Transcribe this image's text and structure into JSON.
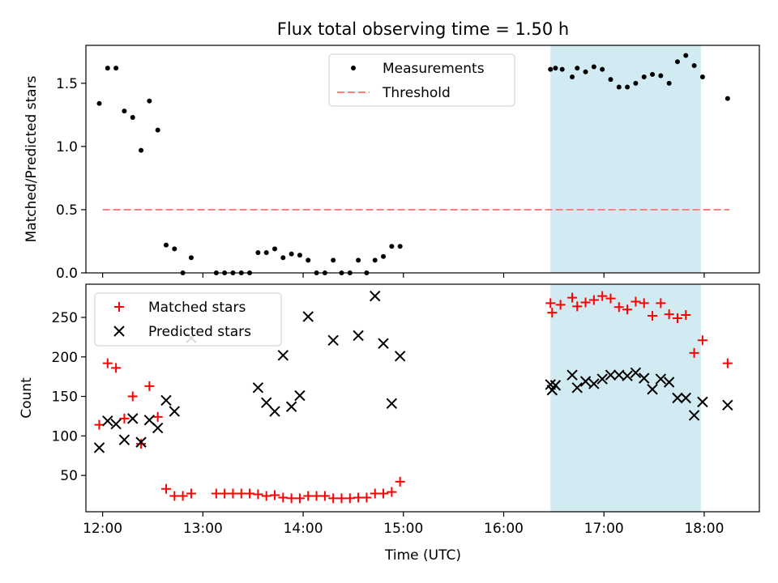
{
  "figure": {
    "title": "Flux total observing time = 1.50 h",
    "xlabel": "Time (UTC)",
    "x_ticks": [
      "12:00",
      "13:00",
      "14:00",
      "15:00",
      "16:00",
      "17:00",
      "18:00"
    ]
  },
  "chart_data": [
    {
      "type": "scatter",
      "ylabel": "Matched/Predicted stars",
      "ylim": [
        0,
        1.8
      ],
      "xlim": [
        "11:50",
        "18:33"
      ],
      "y_ticks": [
        "0.0",
        "0.5",
        "1.0",
        "1.5"
      ],
      "legend": {
        "placement": "top-center",
        "entries": [
          "Measurements",
          "Threshold"
        ]
      },
      "highlight_span": {
        "start": "16:28",
        "end": "17:58",
        "color": "#add8e6"
      },
      "threshold": {
        "name": "Threshold",
        "y": 0.5,
        "x_start": "12:00",
        "x_end": "18:15",
        "color": "#ff7f7f",
        "style": "dashed"
      },
      "series": [
        {
          "name": "Measurements",
          "color": "#000000",
          "marker": "dot",
          "points": [
            [
              "11:58",
              1.34
            ],
            [
              "12:03",
              1.62
            ],
            [
              "12:08",
              1.62
            ],
            [
              "12:13",
              1.28
            ],
            [
              "12:18",
              1.23
            ],
            [
              "12:23",
              0.97
            ],
            [
              "12:28",
              1.36
            ],
            [
              "12:33",
              1.13
            ],
            [
              "12:38",
              0.22
            ],
            [
              "12:43",
              0.19
            ],
            [
              "12:48",
              0.0
            ],
            [
              "12:53",
              0.12
            ],
            [
              "13:08",
              0.0
            ],
            [
              "13:13",
              0.0
            ],
            [
              "13:18",
              0.0
            ],
            [
              "13:23",
              0.0
            ],
            [
              "13:28",
              0.0
            ],
            [
              "13:33",
              0.16
            ],
            [
              "13:38",
              0.16
            ],
            [
              "13:43",
              0.19
            ],
            [
              "13:48",
              0.12
            ],
            [
              "13:53",
              0.15
            ],
            [
              "13:58",
              0.14
            ],
            [
              "14:03",
              0.1
            ],
            [
              "14:08",
              0.0
            ],
            [
              "14:13",
              0.0
            ],
            [
              "14:18",
              0.1
            ],
            [
              "14:23",
              0.0
            ],
            [
              "14:28",
              0.0
            ],
            [
              "14:33",
              0.1
            ],
            [
              "14:38",
              0.0
            ],
            [
              "14:43",
              0.1
            ],
            [
              "14:48",
              0.13
            ],
            [
              "14:53",
              0.21
            ],
            [
              "14:58",
              0.21
            ],
            [
              "16:28",
              1.61
            ],
            [
              "16:31",
              1.62
            ],
            [
              "16:35",
              1.61
            ],
            [
              "16:41",
              1.55
            ],
            [
              "16:44",
              1.62
            ],
            [
              "16:49",
              1.59
            ],
            [
              "16:54",
              1.63
            ],
            [
              "16:59",
              1.61
            ],
            [
              "17:04",
              1.53
            ],
            [
              "17:09",
              1.47
            ],
            [
              "17:14",
              1.47
            ],
            [
              "17:19",
              1.5
            ],
            [
              "17:24",
              1.55
            ],
            [
              "17:29",
              1.57
            ],
            [
              "17:34",
              1.56
            ],
            [
              "17:39",
              1.5
            ],
            [
              "17:44",
              1.67
            ],
            [
              "17:49",
              1.72
            ],
            [
              "17:54",
              1.64
            ],
            [
              "17:59",
              1.55
            ],
            [
              "18:14",
              1.38
            ]
          ]
        }
      ]
    },
    {
      "type": "scatter",
      "ylabel": "Count",
      "ylim": [
        4,
        292
      ],
      "xlim": [
        "11:50",
        "18:33"
      ],
      "y_ticks": [
        "50",
        "100",
        "150",
        "200",
        "250"
      ],
      "legend": {
        "placement": "top-left",
        "entries": [
          "Matched stars",
          "Predicted stars"
        ]
      },
      "highlight_span": {
        "start": "16:28",
        "end": "17:58",
        "color": "#add8e6"
      },
      "series": [
        {
          "name": "Matched stars",
          "color": "#ff0000",
          "marker": "plus",
          "points": [
            [
              "11:58",
              114
            ],
            [
              "12:03",
              192
            ],
            [
              "12:08",
              186
            ],
            [
              "12:13",
              122
            ],
            [
              "12:18",
              150
            ],
            [
              "12:23",
              90
            ],
            [
              "12:28",
              163
            ],
            [
              "12:33",
              124
            ],
            [
              "12:38",
              33
            ],
            [
              "12:43",
              24
            ],
            [
              "12:48",
              24
            ],
            [
              "12:53",
              27
            ],
            [
              "13:08",
              27
            ],
            [
              "13:13",
              27
            ],
            [
              "13:18",
              27
            ],
            [
              "13:23",
              27
            ],
            [
              "13:28",
              27
            ],
            [
              "13:33",
              26
            ],
            [
              "13:38",
              24
            ],
            [
              "13:43",
              25
            ],
            [
              "13:48",
              22
            ],
            [
              "13:53",
              21
            ],
            [
              "13:58",
              21
            ],
            [
              "14:03",
              24
            ],
            [
              "14:08",
              24
            ],
            [
              "14:13",
              24
            ],
            [
              "14:18",
              21
            ],
            [
              "14:23",
              21
            ],
            [
              "14:28",
              21
            ],
            [
              "14:33",
              22
            ],
            [
              "14:38",
              22
            ],
            [
              "14:43",
              27
            ],
            [
              "14:48",
              27
            ],
            [
              "14:53",
              29
            ],
            [
              "14:58",
              42
            ],
            [
              "16:28",
              268
            ],
            [
              "16:29",
              256
            ],
            [
              "16:34",
              266
            ],
            [
              "16:41",
              275
            ],
            [
              "16:44",
              264
            ],
            [
              "16:49",
              269
            ],
            [
              "16:54",
              272
            ],
            [
              "16:59",
              277
            ],
            [
              "17:04",
              274
            ],
            [
              "17:09",
              263
            ],
            [
              "17:14",
              260
            ],
            [
              "17:19",
              270
            ],
            [
              "17:24",
              268
            ],
            [
              "17:29",
              252
            ],
            [
              "17:34",
              268
            ],
            [
              "17:39",
              254
            ],
            [
              "17:44",
              249
            ],
            [
              "17:49",
              253
            ],
            [
              "17:54",
              205
            ],
            [
              "17:59",
              221
            ],
            [
              "18:14",
              192
            ]
          ]
        },
        {
          "name": "Predicted stars",
          "color": "#000000",
          "marker": "x",
          "points": [
            [
              "11:58",
              85
            ],
            [
              "12:03",
              119
            ],
            [
              "12:08",
              115
            ],
            [
              "12:13",
              95
            ],
            [
              "12:18",
              122
            ],
            [
              "12:23",
              92
            ],
            [
              "12:28",
              120
            ],
            [
              "12:33",
              110
            ],
            [
              "12:38",
              145
            ],
            [
              "12:43",
              131
            ],
            [
              "12:53",
              224
            ],
            [
              "13:33",
              161
            ],
            [
              "13:38",
              142
            ],
            [
              "13:43",
              131
            ],
            [
              "13:48",
              202
            ],
            [
              "13:53",
              137
            ],
            [
              "13:58",
              151
            ],
            [
              "14:03",
              251
            ],
            [
              "14:18",
              221
            ],
            [
              "14:33",
              227
            ],
            [
              "14:43",
              277
            ],
            [
              "14:48",
              217
            ],
            [
              "14:53",
              141
            ],
            [
              "14:58",
              201
            ],
            [
              "16:28",
              165
            ],
            [
              "16:29",
              158
            ],
            [
              "16:31",
              164
            ],
            [
              "16:41",
              177
            ],
            [
              "16:44",
              161
            ],
            [
              "16:49",
              169
            ],
            [
              "16:54",
              166
            ],
            [
              "16:59",
              172
            ],
            [
              "17:04",
              177
            ],
            [
              "17:09",
              177
            ],
            [
              "17:14",
              176
            ],
            [
              "17:19",
              180
            ],
            [
              "17:24",
              173
            ],
            [
              "17:29",
              159
            ],
            [
              "17:34",
              172
            ],
            [
              "17:39",
              168
            ],
            [
              "17:44",
              148
            ],
            [
              "17:49",
              148
            ],
            [
              "17:54",
              126
            ],
            [
              "17:59",
              143
            ],
            [
              "18:14",
              139
            ]
          ]
        }
      ]
    }
  ]
}
